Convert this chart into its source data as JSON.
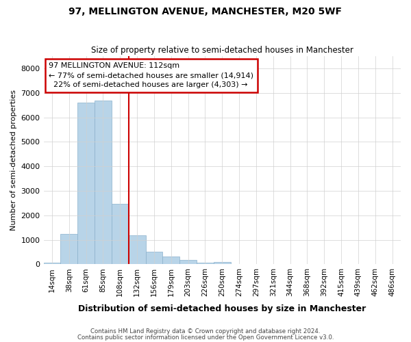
{
  "title": "97, MELLINGTON AVENUE, MANCHESTER, M20 5WF",
  "subtitle": "Size of property relative to semi-detached houses in Manchester",
  "xlabel": "Distribution of semi-detached houses by size in Manchester",
  "ylabel": "Number of semi-detached properties",
  "footer_line1": "Contains HM Land Registry data © Crown copyright and database right 2024.",
  "footer_line2": "Contains public sector information licensed under the Open Government Licence v3.0.",
  "annotation_line1": "97 MELLINGTON AVENUE: 112sqm",
  "annotation_line2": "← 77% of semi-detached houses are smaller (14,914)",
  "annotation_line3": "  22% of semi-detached houses are larger (4,303) →",
  "bar_color": "#b8d4e8",
  "bar_edge_color": "#8ab0cc",
  "property_line_color": "#cc0000",
  "annotation_box_edge_color": "#cc0000",
  "background_color": "#ffffff",
  "grid_color": "#d0d0d0",
  "categories": [
    "14sqm",
    "38sqm",
    "61sqm",
    "85sqm",
    "108sqm",
    "132sqm",
    "156sqm",
    "179sqm",
    "203sqm",
    "226sqm",
    "250sqm",
    "274sqm",
    "297sqm",
    "321sqm",
    "344sqm",
    "368sqm",
    "392sqm",
    "415sqm",
    "439sqm",
    "462sqm",
    "486sqm"
  ],
  "values": [
    60,
    1230,
    6600,
    6680,
    2470,
    1190,
    510,
    330,
    175,
    75,
    95,
    0,
    0,
    0,
    0,
    0,
    0,
    0,
    0,
    0,
    0
  ],
  "property_bar_index": 4,
  "ylim": [
    0,
    8500
  ],
  "yticks": [
    0,
    1000,
    2000,
    3000,
    4000,
    5000,
    6000,
    7000,
    8000
  ]
}
